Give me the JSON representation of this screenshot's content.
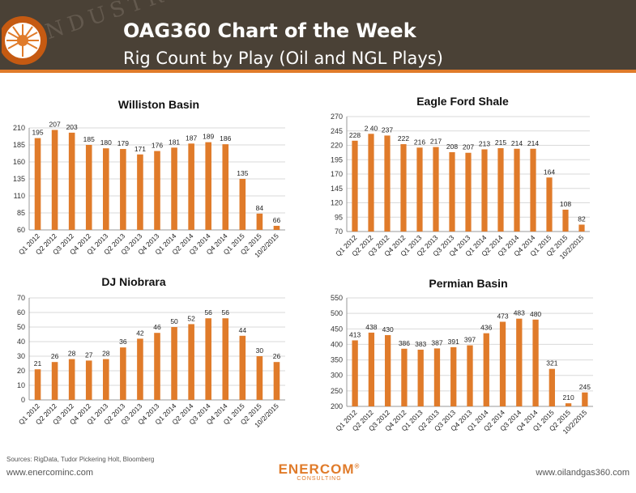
{
  "header": {
    "title": "OAG360 Chart of the Week",
    "subtitle": "Rig Count by Play (Oil and NGL Plays)",
    "background_word": "INDUSTR"
  },
  "colors": {
    "bar": "#e07b2a",
    "header_bg": "#4a4136",
    "accent": "#e07b2a",
    "grid": "#d9d9d9"
  },
  "chart_data": [
    {
      "type": "bar",
      "title": "Williston Basin",
      "categories": [
        "Q1 2012",
        "Q2 2012",
        "Q3 2012",
        "Q4 2012",
        "Q1 2013",
        "Q2 2013",
        "Q3 2013",
        "Q4 2013",
        "Q1 2014",
        "Q2 2014",
        "Q3 2014",
        "Q4 2014",
        "Q1 2015",
        "Q2 2015",
        "10/2/2015"
      ],
      "values": [
        195,
        207,
        203,
        185,
        180,
        179,
        171,
        176,
        181,
        187,
        189,
        186,
        135,
        84,
        66
      ],
      "ylim": [
        60,
        210
      ],
      "yticks": [
        60,
        85,
        110,
        135,
        160,
        185,
        210
      ],
      "xlabel": "",
      "ylabel": "",
      "grid": true
    },
    {
      "type": "bar",
      "title": "Eagle Ford Shale",
      "categories": [
        "Q1 2012",
        "Q2 2012",
        "Q3 2012",
        "Q4 2012",
        "Q1 2013",
        "Q2 2013",
        "Q3 2013",
        "Q4 2013",
        "Q1 2014",
        "Q2 2014",
        "Q3 2014",
        "Q4 2014",
        "Q1 2015",
        "Q2 2015",
        "10/2/2015"
      ],
      "values": [
        228,
        240,
        237,
        222,
        216,
        217,
        208,
        207,
        213,
        215,
        214,
        214,
        164,
        108,
        82
      ],
      "value_labels": [
        "228",
        "2 40",
        "237",
        "222",
        "216",
        "217",
        "208",
        "207",
        "213",
        "215",
        "214",
        "214",
        "164",
        "108",
        "82"
      ],
      "ylim": [
        70,
        270
      ],
      "yticks": [
        70,
        95,
        120,
        145,
        170,
        195,
        220,
        245,
        270
      ],
      "xlabel": "",
      "ylabel": "",
      "grid": true
    },
    {
      "type": "bar",
      "title": "DJ Niobrara",
      "categories": [
        "Q1 2012",
        "Q2 2012",
        "Q3 2012",
        "Q4 2012",
        "Q1 2013",
        "Q2 2013",
        "Q3 2013",
        "Q4 2013",
        "Q1 2014",
        "Q2 2014",
        "Q3 2014",
        "Q4 2014",
        "Q1 2015",
        "Q2 2015",
        "10/2/2015"
      ],
      "values": [
        21,
        26,
        28,
        27,
        28,
        36,
        42,
        46,
        50,
        52,
        56,
        56,
        44,
        30,
        26
      ],
      "ylim": [
        0,
        70
      ],
      "yticks": [
        0,
        10,
        20,
        30,
        40,
        50,
        60,
        70
      ],
      "xlabel": "",
      "ylabel": "",
      "grid": true
    },
    {
      "type": "bar",
      "title": "Permian Basin",
      "categories": [
        "Q1 2012",
        "Q2 2012",
        "Q3 2012",
        "Q4 2012",
        "Q1 2013",
        "Q2 2013",
        "Q3 2013",
        "Q4 2013",
        "Q1 2014",
        "Q2 2014",
        "Q3 2014",
        "Q4 2014",
        "Q1 2015",
        "Q2 2015",
        "10/2/2015"
      ],
      "values": [
        413,
        438,
        430,
        386,
        383,
        387,
        391,
        397,
        436,
        473,
        483,
        480,
        321,
        210,
        245
      ],
      "ylim": [
        200,
        550
      ],
      "yticks": [
        200,
        250,
        300,
        350,
        400,
        450,
        500,
        550
      ],
      "xlabel": "",
      "ylabel": "",
      "grid": true
    }
  ],
  "footer": {
    "sources": "Sources: RigData, Tudor Pickering Holt, Bloomberg",
    "left_url": "www.enercominc.com",
    "right_url": "www.oilandgas360.com",
    "brand": "ENERCOM",
    "brand_reg": "®",
    "brand_sub": "CONSULTING"
  }
}
